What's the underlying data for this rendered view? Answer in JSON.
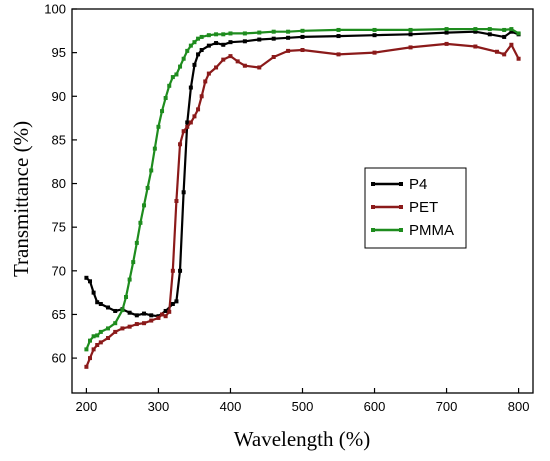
{
  "chart_data": {
    "type": "line",
    "title": "",
    "xlabel": "Wavelength (%)",
    "ylabel": "Transmittance (%)",
    "xlim": [
      180,
      820
    ],
    "ylim": [
      56,
      100
    ],
    "xticks": [
      200,
      300,
      400,
      500,
      600,
      700,
      800
    ],
    "yticks": [
      60,
      65,
      70,
      75,
      80,
      85,
      90,
      95,
      100
    ],
    "grid": false,
    "legend": "center-right",
    "series": [
      {
        "name": "P4",
        "color": "#000000",
        "x": [
          200,
          205,
          210,
          215,
          220,
          230,
          240,
          250,
          260,
          270,
          280,
          290,
          300,
          310,
          320,
          325,
          330,
          335,
          340,
          345,
          350,
          355,
          360,
          370,
          380,
          390,
          400,
          420,
          440,
          460,
          480,
          500,
          550,
          600,
          650,
          700,
          740,
          760,
          780,
          790,
          800
        ],
        "y": [
          69.2,
          68.8,
          67.5,
          66.4,
          66.2,
          65.8,
          65.4,
          65.6,
          65.2,
          64.9,
          65.1,
          64.9,
          64.8,
          65.4,
          66.2,
          66.5,
          70,
          79,
          87,
          91,
          93.6,
          94.8,
          95.3,
          95.8,
          96.1,
          95.9,
          96.2,
          96.3,
          96.5,
          96.6,
          96.7,
          96.8,
          96.9,
          97.0,
          97.1,
          97.3,
          97.4,
          97.1,
          96.8,
          97.4,
          97.1
        ]
      },
      {
        "name": "PET",
        "color": "#8b1a1a",
        "x": [
          200,
          205,
          210,
          215,
          220,
          230,
          240,
          250,
          260,
          270,
          280,
          290,
          300,
          305,
          310,
          315,
          320,
          325,
          330,
          335,
          340,
          345,
          350,
          355,
          360,
          365,
          370,
          380,
          390,
          400,
          410,
          420,
          440,
          460,
          480,
          500,
          550,
          600,
          650,
          700,
          740,
          770,
          780,
          790,
          800
        ],
        "y": [
          59,
          60,
          61,
          61.5,
          61.8,
          62.3,
          63,
          63.4,
          63.6,
          63.9,
          64,
          64.3,
          64.6,
          65,
          64.8,
          65.3,
          70,
          78,
          84.5,
          86,
          86.5,
          87,
          87.7,
          88.5,
          90,
          91.7,
          92.6,
          93.3,
          94.2,
          94.6,
          94,
          93.5,
          93.3,
          94.5,
          95.2,
          95.3,
          94.8,
          95,
          95.6,
          96,
          95.7,
          95.1,
          94.8,
          95.9,
          94.3
        ]
      },
      {
        "name": "PMMA",
        "color": "#1e8c1e",
        "x": [
          200,
          205,
          210,
          215,
          220,
          230,
          240,
          250,
          255,
          260,
          265,
          270,
          275,
          280,
          285,
          290,
          295,
          300,
          305,
          310,
          315,
          320,
          325,
          330,
          335,
          340,
          345,
          350,
          355,
          360,
          370,
          380,
          390,
          400,
          420,
          440,
          460,
          480,
          500,
          550,
          600,
          650,
          700,
          740,
          760,
          780,
          790,
          800
        ],
        "y": [
          61,
          62,
          62.5,
          62.6,
          63,
          63.4,
          64,
          65.5,
          67,
          69,
          71,
          73.2,
          75.5,
          77.5,
          79.5,
          81.5,
          84,
          86.5,
          88.3,
          89.8,
          91.2,
          92.2,
          92.5,
          93.4,
          94.3,
          95.2,
          95.8,
          96.2,
          96.6,
          96.8,
          97.0,
          97.1,
          97.1,
          97.2,
          97.2,
          97.3,
          97.4,
          97.4,
          97.5,
          97.6,
          97.6,
          97.6,
          97.7,
          97.7,
          97.7,
          97.6,
          97.7,
          97.2
        ]
      }
    ]
  }
}
